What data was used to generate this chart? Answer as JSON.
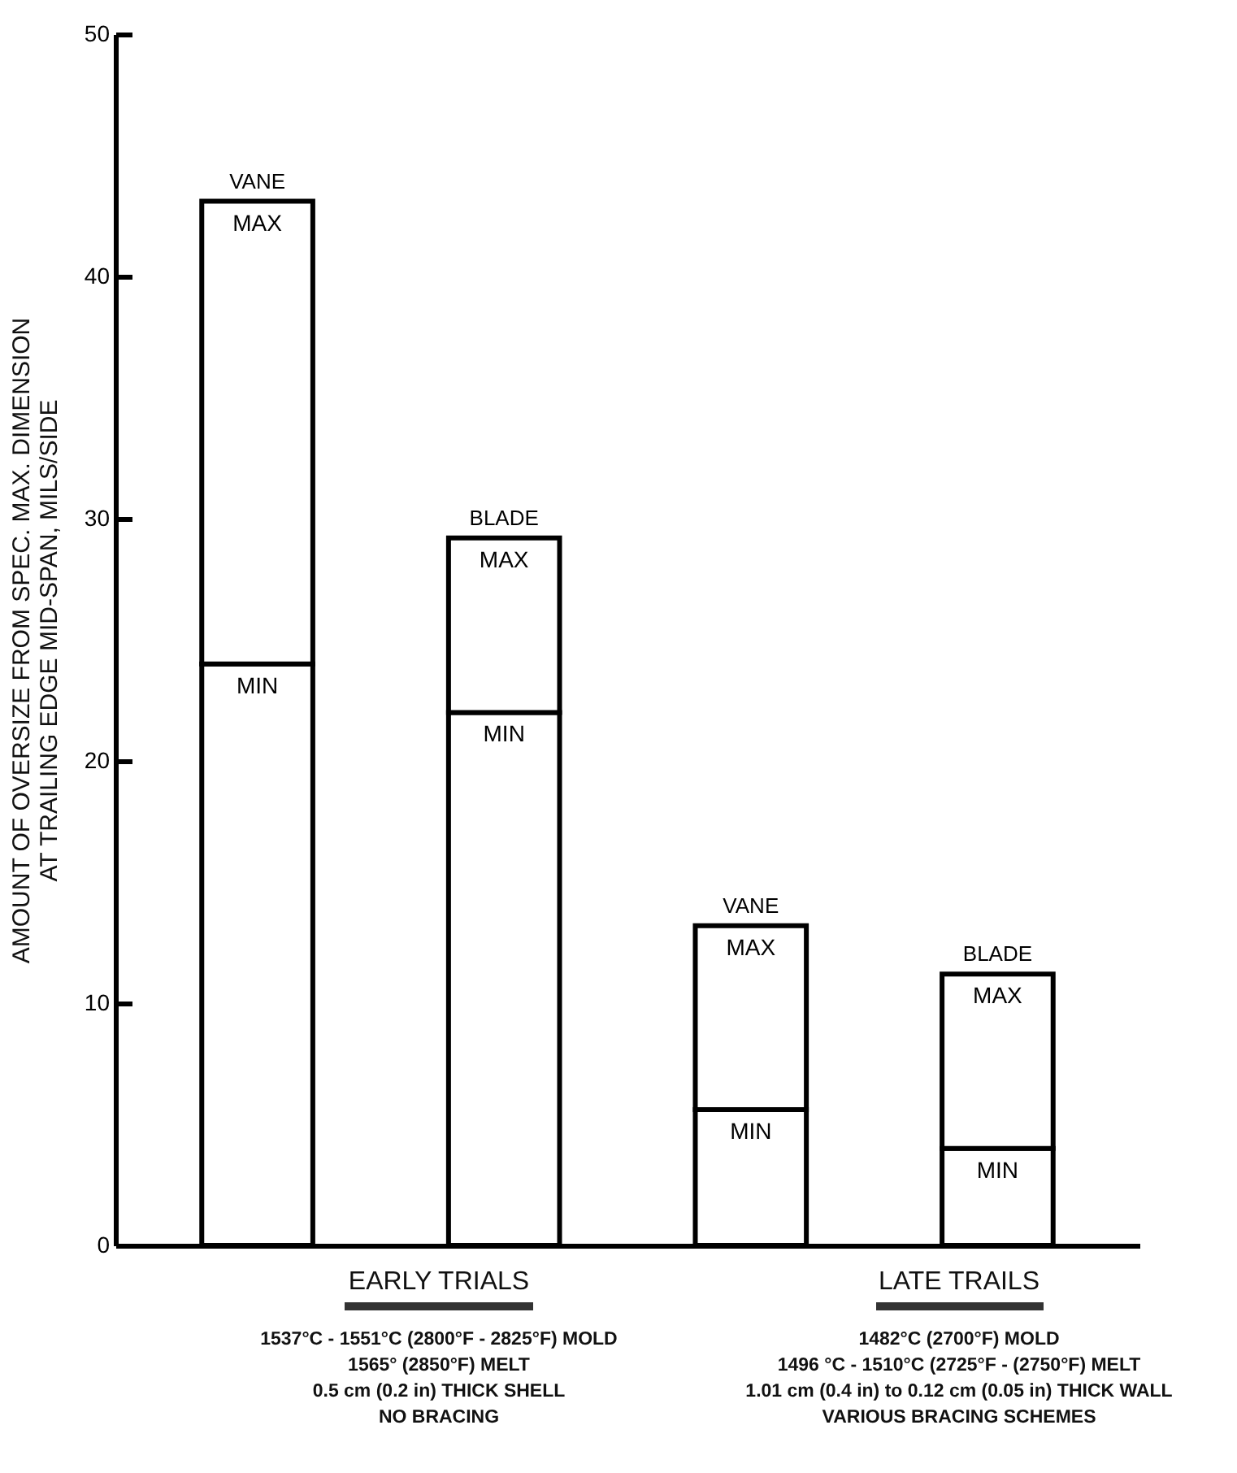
{
  "chart_data": {
    "type": "bar",
    "stacked": true,
    "categories": [
      "VANE",
      "BLADE",
      "VANE",
      "BLADE"
    ],
    "series": [
      {
        "name": "MIN",
        "color": "#ffffff",
        "values": [
          24,
          22,
          5.6,
          4.0
        ]
      },
      {
        "name": "MAX",
        "color": "#ffffff",
        "values": [
          19.1,
          7.2,
          7.6,
          7.2
        ]
      }
    ],
    "ylabel": "AMOUNT OF OVERSIZE FROM SPEC. MAX. DIMENSION\nAT TRAILING EDGE MID-SPAN, MILS/SIDE",
    "ylim": [
      0,
      50
    ],
    "yticks": [
      0,
      10,
      20,
      30,
      40,
      50
    ],
    "annotations": [
      "EARLY TRIALS",
      "1537°C - 1551°C (2800°F - 2825°F) MOLD\n1565° (2850°F) MELT\n0.5 cm (0.2 in) THICK SHELL\nNO BRACING",
      "LATE TRAILS",
      "1482°C (2700°F) MOLD\n1496 °C - 1510°C (2725°F - (2750°F) MELT\n1.01 cm (0.4 in) to 0.12 cm (0.05 in) THICK WALL\nVARIOUS BRACING SCHEMES"
    ]
  }
}
